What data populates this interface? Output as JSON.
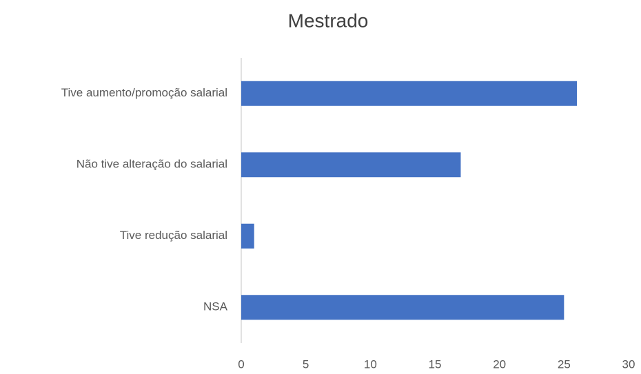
{
  "chart_data": {
    "type": "bar",
    "orientation": "horizontal",
    "title": "Mestrado",
    "categories": [
      "Tive aumento/promoção salarial",
      "Não tive alteração do salarial",
      "Tive redução salarial",
      "NSA"
    ],
    "values": [
      26,
      17,
      1,
      25
    ],
    "color": "#4472c4",
    "xlim": [
      0,
      30
    ],
    "xticks": [
      0,
      5,
      10,
      15,
      20,
      25,
      30
    ],
    "grid": false
  }
}
